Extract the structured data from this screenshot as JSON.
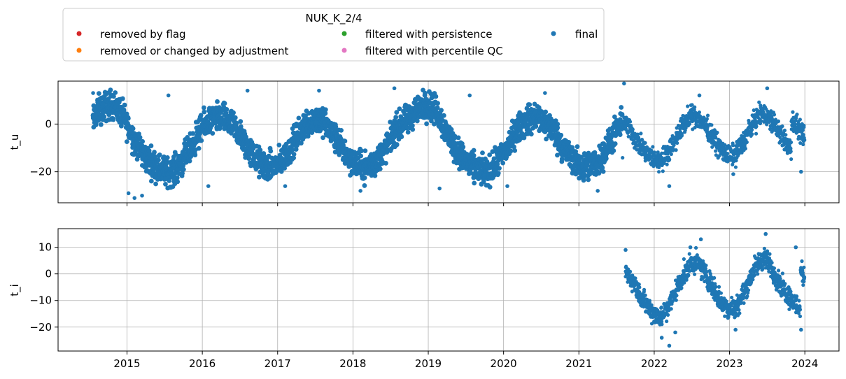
{
  "legend": {
    "title": "NUK_K_2/4",
    "placement": "upper-left, outside above plots",
    "entries": [
      {
        "label": "removed by flag",
        "color": "#d62728"
      },
      {
        "label": "filtered with persistence",
        "color": "#2ca02c"
      },
      {
        "label": "final",
        "color": "#1f77b4"
      },
      {
        "label": "removed or changed by adjustment",
        "color": "#ff7f0e"
      },
      {
        "label": "filtered with percentile QC",
        "color": "#e377c2"
      }
    ]
  },
  "chart_data": [
    {
      "type": "scatter",
      "ylabel": "t_u",
      "xlim": [
        "2014-02-01",
        "2024-06-15"
      ],
      "ylim": [
        -33,
        18
      ],
      "yticks": [
        0,
        -20
      ],
      "ytick_labels": [
        "0",
        "−20"
      ],
      "xticks": [
        "2015-01-01",
        "2016-01-01",
        "2017-01-01",
        "2018-01-01",
        "2019-01-01",
        "2020-01-01",
        "2021-01-01",
        "2022-01-01",
        "2023-01-01",
        "2024-01-01"
      ],
      "grid": true,
      "series": [
        {
          "name": "final",
          "color": "#1f77b4",
          "segments": [
            {
              "start": "2014-07-20",
              "end": "2021-07-31",
              "daily_mean": [
                [
                  0.0,
                  4
                ],
                [
                  0.07,
                  9
                ],
                [
                  0.14,
                  10
                ],
                [
                  0.21,
                  11
                ],
                [
                  0.28,
                  11
                ],
                [
                  0.35,
                  9
                ],
                [
                  0.42,
                  5
                ],
                [
                  0.49,
                  0
                ],
                [
                  0.56,
                  -4
                ],
                [
                  0.63,
                  -8
                ],
                [
                  0.7,
                  -11
                ],
                [
                  0.77,
                  -13
                ],
                [
                  0.84,
                  -15
                ],
                [
                  0.91,
                  -16
                ],
                [
                  0.98,
                  -17
                ],
                [
                  1.05,
                  -17
                ],
                [
                  1.12,
                  -15
                ],
                [
                  1.19,
                  -12
                ],
                [
                  1.26,
                  -9
                ],
                [
                  1.33,
                  -5
                ],
                [
                  1.4,
                  -1
                ],
                [
                  1.47,
                  2
                ],
                [
                  1.54,
                  4
                ],
                [
                  1.61,
                  5
                ],
                [
                  1.68,
                  6
                ],
                [
                  1.75,
                  5
                ],
                [
                  1.82,
                  3
                ],
                [
                  1.89,
                  1
                ],
                [
                  1.96,
                  -2
                ],
                [
                  2.03,
                  -6
                ],
                [
                  2.1,
                  -9
                ],
                [
                  2.17,
                  -12
                ],
                [
                  2.24,
                  -14
                ],
                [
                  2.31,
                  -15
                ],
                [
                  2.38,
                  -15
                ],
                [
                  2.45,
                  -14
                ],
                [
                  2.52,
                  -12
                ],
                [
                  2.59,
                  -9
                ],
                [
                  2.66,
                  -5
                ],
                [
                  2.73,
                  -1
                ],
                [
                  2.8,
                  2
                ],
                [
                  2.87,
                  4
                ],
                [
                  2.94,
                  5
                ],
                [
                  3.01,
                  5
                ],
                [
                  3.08,
                  3
                ],
                [
                  3.15,
                  0
                ],
                [
                  3.22,
                  -3
                ],
                [
                  3.29,
                  -6
                ],
                [
                  3.36,
                  -9
                ],
                [
                  3.43,
                  -12
                ],
                [
                  3.5,
                  -14
                ],
                [
                  3.57,
                  -15
                ],
                [
                  3.64,
                  -15
                ],
                [
                  3.71,
                  -14
                ],
                [
                  3.78,
                  -12
                ],
                [
                  3.85,
                  -9
                ],
                [
                  3.92,
                  -5
                ],
                [
                  3.99,
                  -1
                ],
                [
                  4.06,
                  2
                ],
                [
                  4.13,
                  4
                ],
                [
                  4.2,
                  5
                ]
              ],
              "spread": [
                -12,
                6
              ]
            },
            {
              "start": "2021-08-01",
              "end": "2023-12-31",
              "daily_mean": [
                [
                  0.0,
                  3
                ],
                [
                  0.08,
                  0
                ],
                [
                  0.16,
                  -4
                ],
                [
                  0.24,
                  -8
                ],
                [
                  0.32,
                  -11
                ],
                [
                  0.4,
                  -13
                ],
                [
                  0.48,
                  -14
                ],
                [
                  0.56,
                  -12
                ],
                [
                  0.64,
                  -8
                ],
                [
                  0.72,
                  -4
                ],
                [
                  0.8,
                  1
                ],
                [
                  0.88,
                  4
                ],
                [
                  0.96,
                  5
                ],
                [
                  1.04,
                  3
                ],
                [
                  1.12,
                  0
                ],
                [
                  1.2,
                  -4
                ],
                [
                  1.28,
                  -8
                ],
                [
                  1.36,
                  -11
                ],
                [
                  1.44,
                  -12
                ],
                [
                  1.52,
                  -10
                ],
                [
                  1.6,
                  -6
                ],
                [
                  1.68,
                  -1
                ],
                [
                  1.76,
                  3
                ],
                [
                  1.84,
                  6
                ],
                [
                  1.92,
                  5
                ],
                [
                  2.0,
                  2
                ],
                [
                  2.08,
                  -2
                ],
                [
                  2.16,
                  -6
                ],
                [
                  2.24,
                  -9
                ]
              ],
              "spread": [
                -8,
                5
              ]
            }
          ],
          "extreme_points": [
            [
              2015.1,
              -31
            ],
            [
              2015.02,
              -29
            ],
            [
              2015.2,
              -30
            ],
            [
              2016.08,
              -26
            ],
            [
              2017.1,
              -26
            ],
            [
              2018.1,
              -28
            ],
            [
              2019.15,
              -27
            ],
            [
              2020.05,
              -26
            ],
            [
              2021.25,
              -28
            ],
            [
              2022.2,
              -26
            ],
            [
              2023.05,
              -21
            ],
            [
              2023.95,
              -20
            ],
            [
              2014.55,
              13
            ],
            [
              2015.55,
              12
            ],
            [
              2016.6,
              14
            ],
            [
              2017.55,
              14
            ],
            [
              2018.55,
              15
            ],
            [
              2019.55,
              12
            ],
            [
              2020.55,
              13
            ],
            [
              2021.6,
              17
            ],
            [
              2022.6,
              12
            ],
            [
              2023.5,
              15
            ]
          ],
          "x_range": [
            "2014-07-20",
            "2023-12-31"
          ],
          "y_range": [
            -31,
            17
          ]
        }
      ]
    },
    {
      "type": "scatter",
      "ylabel": "t_i",
      "xlim": [
        "2014-02-01",
        "2024-06-15"
      ],
      "ylim": [
        -29,
        17
      ],
      "yticks": [
        10,
        0,
        -10,
        -20
      ],
      "ytick_labels": [
        "10",
        "0",
        "−10",
        "−20"
      ],
      "xticks": [
        "2015-01-01",
        "2016-01-01",
        "2017-01-01",
        "2018-01-01",
        "2019-01-01",
        "2020-01-01",
        "2021-01-01",
        "2022-01-01",
        "2023-01-01",
        "2024-01-01"
      ],
      "xtick_labels": [
        "2015",
        "2016",
        "2017",
        "2018",
        "2019",
        "2020",
        "2021",
        "2022",
        "2023",
        "2024"
      ],
      "grid": true,
      "series": [
        {
          "name": "final",
          "color": "#1f77b4",
          "segments": [
            {
              "start": "2021-08-15",
              "end": "2023-12-31",
              "daily_mean": [
                [
                  0.0,
                  2
                ],
                [
                  0.08,
                  -1
                ],
                [
                  0.16,
                  -5
                ],
                [
                  0.24,
                  -9
                ],
                [
                  0.32,
                  -12
                ],
                [
                  0.4,
                  -14
                ],
                [
                  0.48,
                  -15
                ],
                [
                  0.56,
                  -12
                ],
                [
                  0.64,
                  -7
                ],
                [
                  0.72,
                  -2
                ],
                [
                  0.8,
                  2
                ],
                [
                  0.88,
                  5
                ],
                [
                  0.96,
                  5
                ],
                [
                  1.04,
                  2
                ],
                [
                  1.12,
                  -2
                ],
                [
                  1.2,
                  -6
                ],
                [
                  1.28,
                  -10
                ],
                [
                  1.36,
                  -12
                ],
                [
                  1.44,
                  -12
                ],
                [
                  1.52,
                  -9
                ],
                [
                  1.6,
                  -4
                ],
                [
                  1.68,
                  1
                ],
                [
                  1.76,
                  5
                ],
                [
                  1.84,
                  7
                ],
                [
                  1.92,
                  4
                ],
                [
                  2.0,
                  0
                ],
                [
                  2.08,
                  -4
                ],
                [
                  2.16,
                  -7
                ],
                [
                  2.24,
                  -10
                ],
                [
                  2.32,
                  -12
                ]
              ],
              "spread": [
                -7,
                5
              ]
            }
          ],
          "extreme_points": [
            [
              2022.2,
              -27
            ],
            [
              2022.1,
              -24
            ],
            [
              2022.28,
              -22
            ],
            [
              2023.08,
              -21
            ],
            [
              2023.95,
              -21
            ],
            [
              2021.62,
              9
            ],
            [
              2022.62,
              13
            ],
            [
              2023.48,
              15
            ],
            [
              2023.88,
              10
            ],
            [
              2022.48,
              10
            ]
          ],
          "x_range": [
            "2021-08-15",
            "2023-12-31"
          ],
          "y_range": [
            -27,
            15
          ]
        }
      ]
    }
  ]
}
